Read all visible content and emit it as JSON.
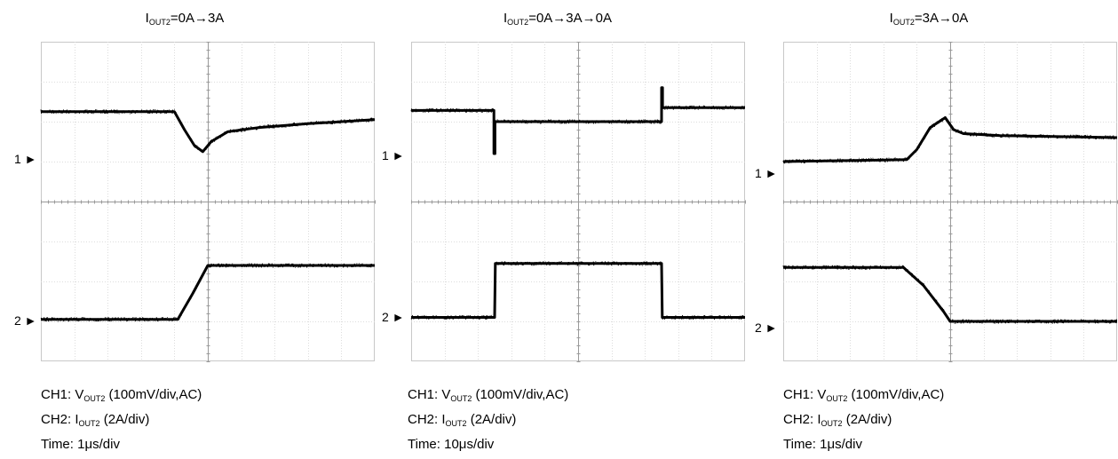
{
  "panels": [
    {
      "title": {
        "main": "I",
        "sub": "OUT2",
        "rest": "=0A→3A"
      },
      "ch1": {
        "prefix": "CH1: V",
        "sub": "OUT2",
        "rest": " (100mV/div,AC)",
        "marker": "1"
      },
      "ch2": {
        "prefix": "CH2: I",
        "sub": "OUT2",
        "rest": " (2A/div)",
        "marker": "2"
      },
      "time": "Time: 1μs/div"
    },
    {
      "title": {
        "main": "I",
        "sub": "OUT2",
        "rest": "=0A→3A→0A"
      },
      "ch1": {
        "prefix": "CH1: V",
        "sub": "OUT2",
        "rest": " (100mV/div,AC)",
        "marker": "1"
      },
      "ch2": {
        "prefix": "CH2: I",
        "sub": "OUT2",
        "rest": " (2A/div)",
        "marker": "2"
      },
      "time": "Time: 10μs/div"
    },
    {
      "title": {
        "main": "I",
        "sub": "OUT2",
        "rest": "=3A→0A"
      },
      "ch1": {
        "prefix": "CH1: V",
        "sub": "OUT2",
        "rest": " (100mV/div,AC)",
        "marker": "1"
      },
      "ch2": {
        "prefix": "CH2: I",
        "sub": "OUT2",
        "rest": " (2A/div)",
        "marker": "2"
      },
      "time": "Time: 1μs/div"
    }
  ],
  "chart_data": [
    {
      "type": "line",
      "grid": {
        "x_divisions": 10,
        "y_divisions": 8
      },
      "xlim": [
        0,
        10
      ],
      "ylim": [
        0,
        8
      ],
      "series": [
        {
          "channel": "CH1",
          "x": [
            0,
            4,
            4.3,
            4.6,
            4.85,
            5.1,
            5.6,
            6.5,
            8,
            10
          ],
          "y": [
            6.25,
            6.25,
            5.8,
            5.4,
            5.25,
            5.5,
            5.75,
            5.85,
            5.95,
            6.05
          ]
        },
        {
          "channel": "CH2",
          "x": [
            0,
            4.1,
            4.55,
            5.0,
            10
          ],
          "y": [
            1.05,
            1.05,
            1.7,
            2.4,
            2.4
          ]
        }
      ]
    },
    {
      "type": "line",
      "grid": {
        "x_divisions": 10,
        "y_divisions": 8
      },
      "xlim": [
        0,
        10
      ],
      "ylim": [
        0,
        8
      ],
      "series": [
        {
          "channel": "CH1",
          "x": [
            0,
            2.48,
            2.48,
            2.51,
            2.51,
            7.5,
            7.5,
            7.53,
            7.53,
            10
          ],
          "y": [
            6.28,
            6.28,
            5.2,
            5.2,
            6.0,
            6.0,
            6.85,
            6.85,
            6.35,
            6.35
          ]
        },
        {
          "channel": "CH2",
          "x": [
            0,
            2.5,
            2.52,
            7.5,
            7.52,
            10
          ],
          "y": [
            1.1,
            1.1,
            2.45,
            2.45,
            1.1,
            1.1
          ]
        }
      ]
    },
    {
      "type": "line",
      "grid": {
        "x_divisions": 10,
        "y_divisions": 8
      },
      "xlim": [
        0,
        10
      ],
      "ylim": [
        0,
        8
      ],
      "series": [
        {
          "channel": "CH1",
          "x": [
            0,
            3.7,
            4.0,
            4.4,
            4.85,
            5.1,
            5.4,
            6.5,
            10
          ],
          "y": [
            5.0,
            5.05,
            5.3,
            5.85,
            6.1,
            5.8,
            5.7,
            5.65,
            5.6
          ]
        },
        {
          "channel": "CH2",
          "x": [
            0,
            3.6,
            4.2,
            4.8,
            5.0,
            10
          ],
          "y": [
            2.35,
            2.35,
            1.9,
            1.25,
            1.0,
            1.0
          ]
        }
      ]
    }
  ]
}
